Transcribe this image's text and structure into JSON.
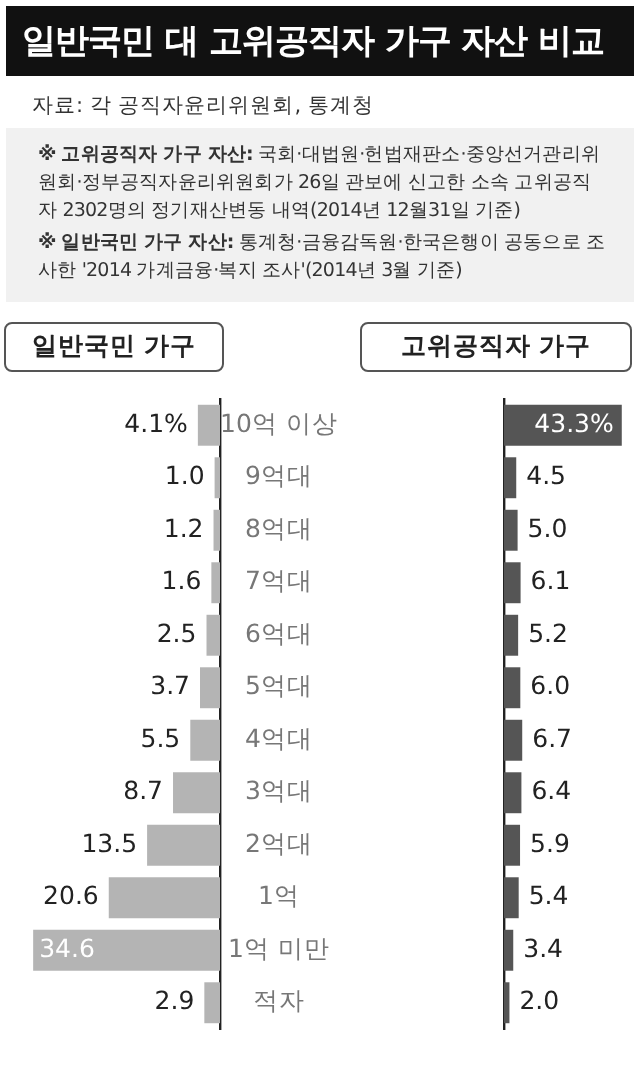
{
  "chart_data": [
    {
      "type": "bar",
      "orientation": "horizontal",
      "title": "일반국민 대 고위공직자 가구 자산 비교",
      "subtitle": "일반국민 가구",
      "annotations": [
        "자료: 각 공직자윤리위원회, 통계청",
        "※ 고위공직자 가구 자산: 국회·대법원·헌법재판소·중앙선거관리위원회·정부공직자윤리위원회가 26일 관보에 신고한 소속 고위공직자 2302명의 정기재산변동 내역(2014년 12월31일 기준)",
        "※ 일반국민 가구 자산: 통계청·금융감독원·한국은행이 공동으로 조사한 '2014 가계금융·복지 조사'(2014년 3월 기준)"
      ],
      "categories": [
        "10억 이상",
        "9억대",
        "8억대",
        "7억대",
        "6억대",
        "5억대",
        "4억대",
        "3억대",
        "2억대",
        "1억",
        "1억 미만",
        "적자"
      ],
      "values": [
        4.1,
        1.0,
        1.2,
        1.6,
        2.5,
        3.7,
        5.5,
        8.7,
        13.5,
        20.6,
        34.6,
        2.9
      ],
      "value_labels": [
        "4.1%",
        "1.0",
        "1.2",
        "1.6",
        "2.5",
        "3.7",
        "5.5",
        "8.7",
        "13.5",
        "20.6",
        "34.6",
        "2.9"
      ],
      "color": "#b4b4b4",
      "tick_labels": "y",
      "legend": false
    },
    {
      "type": "bar",
      "orientation": "horizontal",
      "subtitle": "고위공직자 가구",
      "categories": [
        null,
        null,
        null,
        null,
        null,
        null,
        null,
        null,
        null,
        null,
        null,
        null
      ],
      "values": [
        43.3,
        4.5,
        5.0,
        6.1,
        5.2,
        6.0,
        6.7,
        6.4,
        5.9,
        5.4,
        3.4,
        2.0
      ],
      "value_labels": [
        "43.3%",
        "4.5",
        "5.0",
        "6.1",
        "5.2",
        "6.0",
        "6.7",
        "6.4",
        "5.9",
        "5.4",
        "3.4",
        "2.0"
      ],
      "color": "#555555",
      "legend": false
    }
  ]
}
